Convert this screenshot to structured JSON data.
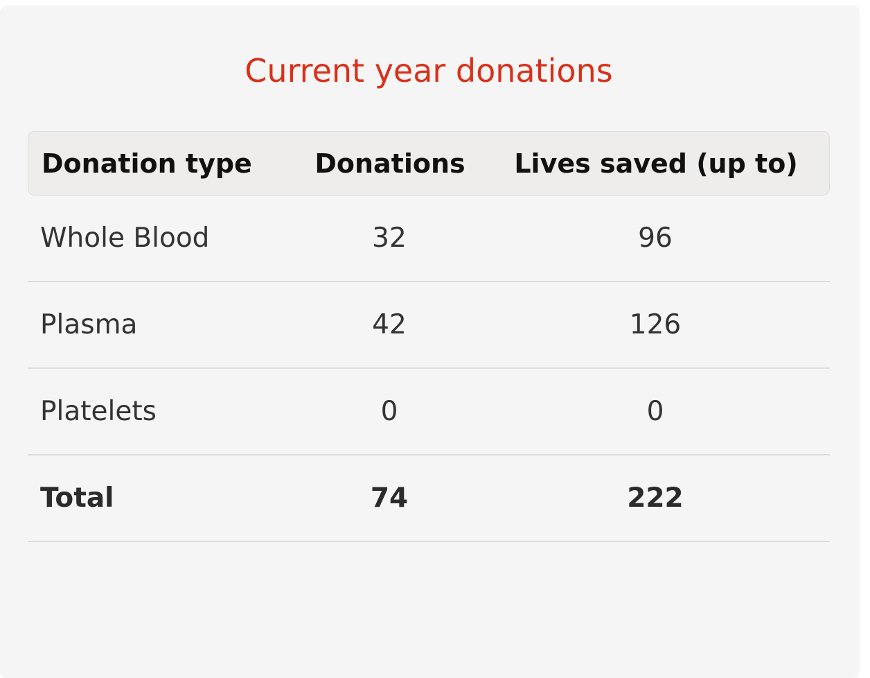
{
  "title": "Current year donations",
  "table": {
    "headers": [
      "Donation type",
      "Donations",
      "Lives saved (up to)"
    ],
    "rows": [
      {
        "type": "Whole Blood",
        "donations": "32",
        "lives": "96"
      },
      {
        "type": "Plasma",
        "donations": "42",
        "lives": "126"
      },
      {
        "type": "Platelets",
        "donations": "0",
        "lives": "0"
      }
    ],
    "total": {
      "type": "Total",
      "donations": "74",
      "lives": "222"
    }
  },
  "colors": {
    "title": "#d9301a",
    "card_background": "#f5f5f5",
    "header_background": "#eeedeb"
  }
}
